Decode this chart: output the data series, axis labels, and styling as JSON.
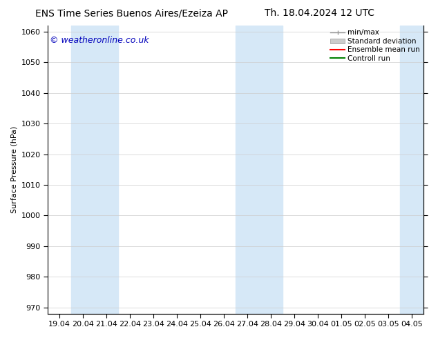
{
  "title_left": "ENS Time Series Buenos Aires/Ezeiza AP",
  "title_right": "Th. 18.04.2024 12 UTC",
  "ylabel": "Surface Pressure (hPa)",
  "ylim": [
    968,
    1062
  ],
  "yticks": [
    970,
    980,
    990,
    1000,
    1010,
    1020,
    1030,
    1040,
    1050,
    1060
  ],
  "x_tick_positions": [
    0,
    1,
    2,
    3,
    4,
    5,
    6,
    7,
    8,
    9,
    10,
    11,
    12,
    13,
    14,
    15
  ],
  "x_labels": [
    "19.04",
    "20.04",
    "21.04",
    "22.04",
    "23.04",
    "24.04",
    "25.04",
    "26.04",
    "27.04",
    "28.04",
    "29.04",
    "30.04",
    "01.05",
    "02.05",
    "03.05",
    "04.05"
  ],
  "shaded_regions": [
    {
      "xmin": 1.0,
      "xmax": 3.0
    },
    {
      "xmin": 8.0,
      "xmax": 10.0
    },
    {
      "xmin": 15.0,
      "xmax": 16.0
    }
  ],
  "shaded_color": "#d6e8f7",
  "background_color": "#ffffff",
  "plot_bg_color": "#ffffff",
  "watermark_text": "© weatheronline.co.uk",
  "watermark_color": "#0000bb",
  "legend_items": [
    {
      "label": "min/max",
      "color": "#999999",
      "type": "minmax"
    },
    {
      "label": "Standard deviation",
      "color": "#cccccc",
      "type": "band"
    },
    {
      "label": "Ensemble mean run",
      "color": "#ff0000",
      "type": "line"
    },
    {
      "label": "Controll run",
      "color": "#008000",
      "type": "line"
    }
  ],
  "title_fontsize": 10,
  "tick_fontsize": 8,
  "ylabel_fontsize": 8,
  "legend_fontsize": 7.5,
  "watermark_fontsize": 9
}
